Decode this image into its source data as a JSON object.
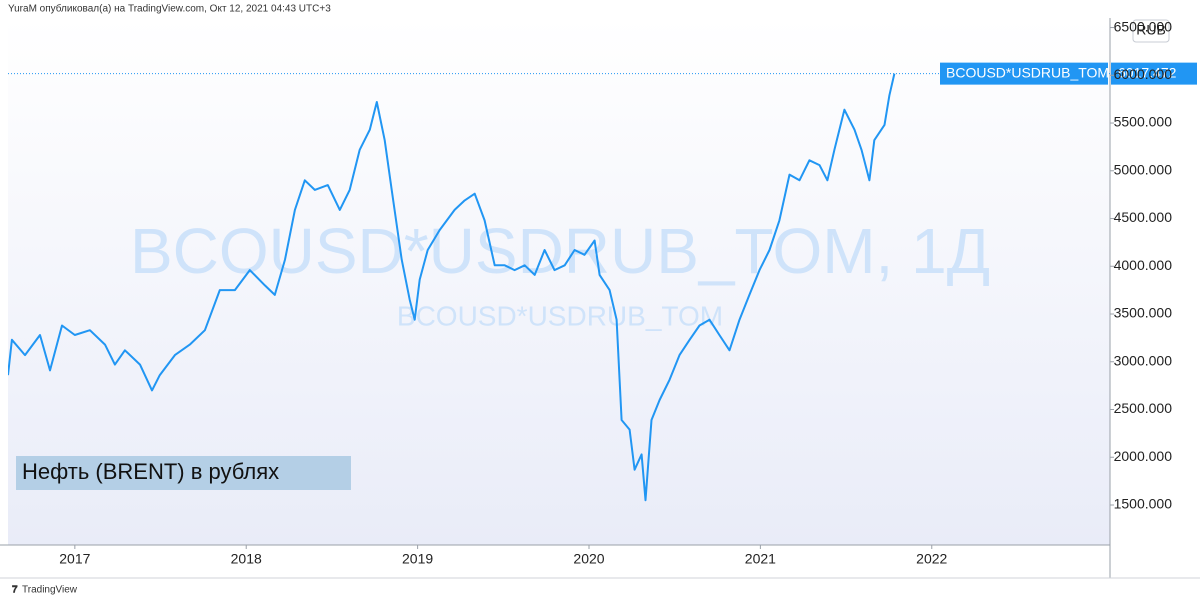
{
  "header": "YuraM опубликовал(а) на TradingView.com, Окт 12, 2021 04:43 UTC+3",
  "footer": "TradingView",
  "chart_data": {
    "type": "line",
    "watermark": "BCOUSD*USDRUB_TOM, 1Д",
    "annotation": "Нефть (BRENT) в рублях",
    "currency": "RUB",
    "x": [
      2016.61,
      2016.633,
      2016.709,
      2016.797,
      2016.855,
      2016.925,
      2017.0,
      2017.088,
      2017.176,
      2017.234,
      2017.292,
      2017.38,
      2017.45,
      2017.496,
      2017.584,
      2017.671,
      2017.759,
      2017.846,
      2017.934,
      2018.021,
      2018.109,
      2018.167,
      2018.226,
      2018.284,
      2018.342,
      2018.4,
      2018.476,
      2018.546,
      2018.604,
      2018.662,
      2018.721,
      2018.762,
      2018.808,
      2018.849,
      2018.907,
      2018.954,
      2018.983,
      2019.012,
      2019.059,
      2019.129,
      2019.216,
      2019.275,
      2019.333,
      2019.391,
      2019.45,
      2019.508,
      2019.566,
      2019.625,
      2019.683,
      2019.741,
      2019.799,
      2019.858,
      2019.916,
      2019.974,
      2020.033,
      2020.062,
      2020.12,
      2020.161,
      2020.19,
      2020.237,
      2020.266,
      2020.307,
      2020.33,
      2020.365,
      2020.412,
      2020.47,
      2020.528,
      2020.587,
      2020.645,
      2020.703,
      2020.761,
      2020.82,
      2020.878,
      2020.936,
      2020.995,
      2021.053,
      2021.111,
      2021.17,
      2021.228,
      2021.286,
      2021.345,
      2021.391,
      2021.432,
      2021.49,
      2021.549,
      2021.59,
      2021.636,
      2021.665,
      2021.724,
      2021.753,
      2021.782
    ],
    "series": [
      {
        "name": "BCOUSD*USDRUB_TOM",
        "color": "#2196f3",
        "values": [
          2860,
          3230,
          3070,
          3280,
          2910,
          3380,
          3280,
          3330,
          3180,
          2970,
          3120,
          2970,
          2700,
          2860,
          3070,
          3180,
          3330,
          3750,
          3750,
          3960,
          3800,
          3700,
          4070,
          4590,
          4900,
          4800,
          4850,
          4590,
          4800,
          5220,
          5430,
          5720,
          5320,
          4800,
          4070,
          3650,
          3440,
          3860,
          4170,
          4380,
          4590,
          4690,
          4760,
          4480,
          4010,
          4010,
          3960,
          4010,
          3910,
          4170,
          3960,
          4010,
          4170,
          4120,
          4270,
          3910,
          3750,
          3440,
          2390,
          2290,
          1870,
          2030,
          1550,
          2390,
          2600,
          2810,
          3070,
          3230,
          3380,
          3440,
          3280,
          3120,
          3440,
          3700,
          3960,
          4170,
          4480,
          4960,
          4900,
          5110,
          5060,
          4900,
          5220,
          5640,
          5430,
          5220,
          4900,
          5320,
          5480,
          5790,
          6017.472
        ]
      }
    ],
    "xlim": [
      2016.61,
      2023.04
    ],
    "xticks": [
      2017,
      2018,
      2019,
      2020,
      2021,
      2022
    ],
    "ylim": [
      1081,
      6600
    ],
    "yticks": [
      {
        "value": 1500,
        "label": "1500.000"
      },
      {
        "value": 2000,
        "label": "2000.000"
      },
      {
        "value": 2500,
        "label": "2500.000"
      },
      {
        "value": 3000,
        "label": "3000.000"
      },
      {
        "value": 3500,
        "label": "3500.000"
      },
      {
        "value": 4000,
        "label": "4000.000"
      },
      {
        "value": 4500,
        "label": "4500.000"
      },
      {
        "value": 5000,
        "label": "5000.000"
      },
      {
        "value": 5500,
        "label": "5500.000"
      },
      {
        "value": 6000,
        "label": "6000.000"
      },
      {
        "value": 6500,
        "label": "6500.000"
      }
    ],
    "grid": false
  }
}
